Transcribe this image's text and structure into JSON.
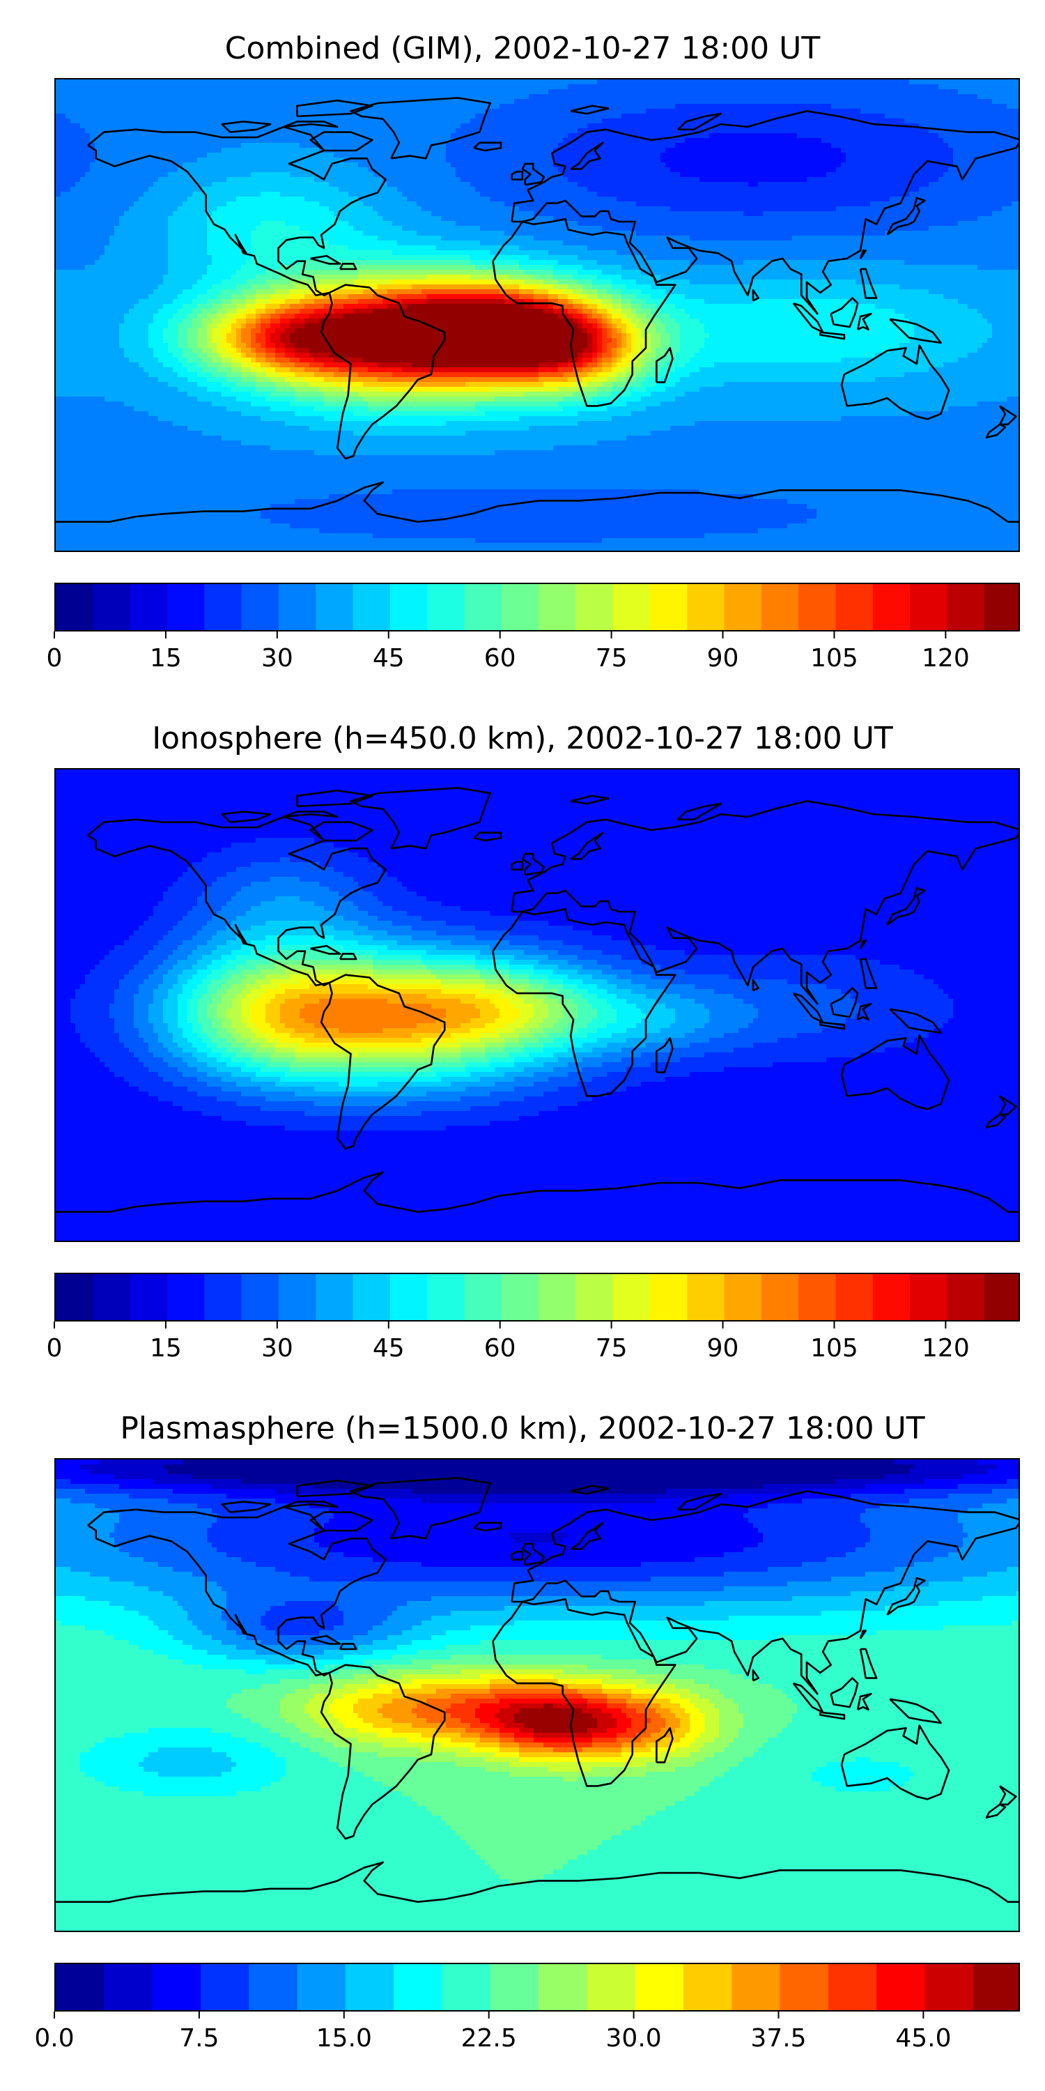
{
  "panels": [
    {
      "title": "Combined (GIM), 2002-10-27 18:00 UT",
      "tick_labels": [
        "0",
        "15",
        "30",
        "45",
        "60",
        "75",
        "90",
        "105",
        "120"
      ],
      "tick_values": [
        0,
        15,
        30,
        45,
        60,
        75,
        90,
        105,
        120
      ],
      "range": [
        0,
        130
      ],
      "levels": 26,
      "field": {
        "background": 0.26,
        "blobs": [
          {
            "lon": -50,
            "lat": -8,
            "amp": 0.7,
            "slon": 40,
            "slat": 16
          },
          {
            "lon": -15,
            "lat": -5,
            "amp": 0.45,
            "slon": 25,
            "slat": 12
          },
          {
            "lon": 15,
            "lat": -12,
            "amp": 0.35,
            "slon": 20,
            "slat": 12
          },
          {
            "lon": -95,
            "lat": -8,
            "amp": 0.3,
            "slon": 25,
            "slat": 10
          },
          {
            "lon": 100,
            "lat": -5,
            "amp": 0.12,
            "slon": 50,
            "slat": 15
          },
          {
            "lon": -100,
            "lat": 35,
            "amp": 0.12,
            "slon": 30,
            "slat": 15
          },
          {
            "lon": 80,
            "lat": 60,
            "amp": -0.12,
            "slon": 70,
            "slat": 20
          },
          {
            "lon": 0,
            "lat": -75,
            "amp": -0.05,
            "slon": 100,
            "slat": 10
          }
        ]
      }
    },
    {
      "title": "Ionosphere  (h=450.0 km), 2002-10-27 18:00 UT",
      "tick_labels": [
        "0",
        "15",
        "30",
        "45",
        "60",
        "75",
        "90",
        "105",
        "120"
      ],
      "tick_values": [
        0,
        15,
        30,
        45,
        60,
        75,
        90,
        105,
        120
      ],
      "range": [
        0,
        130
      ],
      "levels": 26,
      "field": {
        "background": 0.12,
        "blobs": [
          {
            "lon": -55,
            "lat": -5,
            "amp": 0.5,
            "slon": 45,
            "slat": 18
          },
          {
            "lon": -100,
            "lat": 0,
            "amp": 0.25,
            "slon": 30,
            "slat": 18
          },
          {
            "lon": -10,
            "lat": 0,
            "amp": 0.2,
            "slon": 30,
            "slat": 12
          },
          {
            "lon": 45,
            "lat": -5,
            "amp": 0.1,
            "slon": 25,
            "slat": 10
          },
          {
            "lon": -95,
            "lat": 40,
            "amp": 0.12,
            "slon": 25,
            "slat": 15
          },
          {
            "lon": 100,
            "lat": 0,
            "amp": 0.08,
            "slon": 40,
            "slat": 15
          }
        ]
      }
    },
    {
      "title": "Plasmasphere (h=1500.0 km), 2002-10-27 18:00 UT",
      "tick_labels": [
        "0.0",
        "7.5",
        "15.0",
        "22.5",
        "30.0",
        "37.5",
        "45.0"
      ],
      "tick_values": [
        0,
        7.5,
        15,
        22.5,
        30,
        37.5,
        45
      ],
      "range": [
        0,
        50
      ],
      "levels": 20,
      "field": {
        "background": 0.45,
        "blobs": [
          {
            "lon": 10,
            "lat": -10,
            "amp": 0.42,
            "slon": 20,
            "slat": 10
          },
          {
            "lon": -20,
            "lat": -5,
            "amp": 0.25,
            "slon": 25,
            "slat": 10
          },
          {
            "lon": 45,
            "lat": -10,
            "amp": 0.22,
            "slon": 18,
            "slat": 10
          },
          {
            "lon": -60,
            "lat": -5,
            "amp": 0.18,
            "slon": 25,
            "slat": 10
          },
          {
            "lon": 0,
            "lat": 60,
            "amp": -0.35,
            "slon": 150,
            "slat": 20
          },
          {
            "lon": -90,
            "lat": 25,
            "amp": -0.2,
            "slon": 30,
            "slat": 10
          },
          {
            "lon": 0,
            "lat": 88,
            "amp": -0.4,
            "slon": 200,
            "slat": 8
          },
          {
            "lon": -130,
            "lat": -25,
            "amp": -0.12,
            "slon": 30,
            "slat": 10
          },
          {
            "lon": 120,
            "lat": -30,
            "amp": -0.06,
            "slon": 30,
            "slat": 10
          }
        ]
      }
    }
  ]
}
